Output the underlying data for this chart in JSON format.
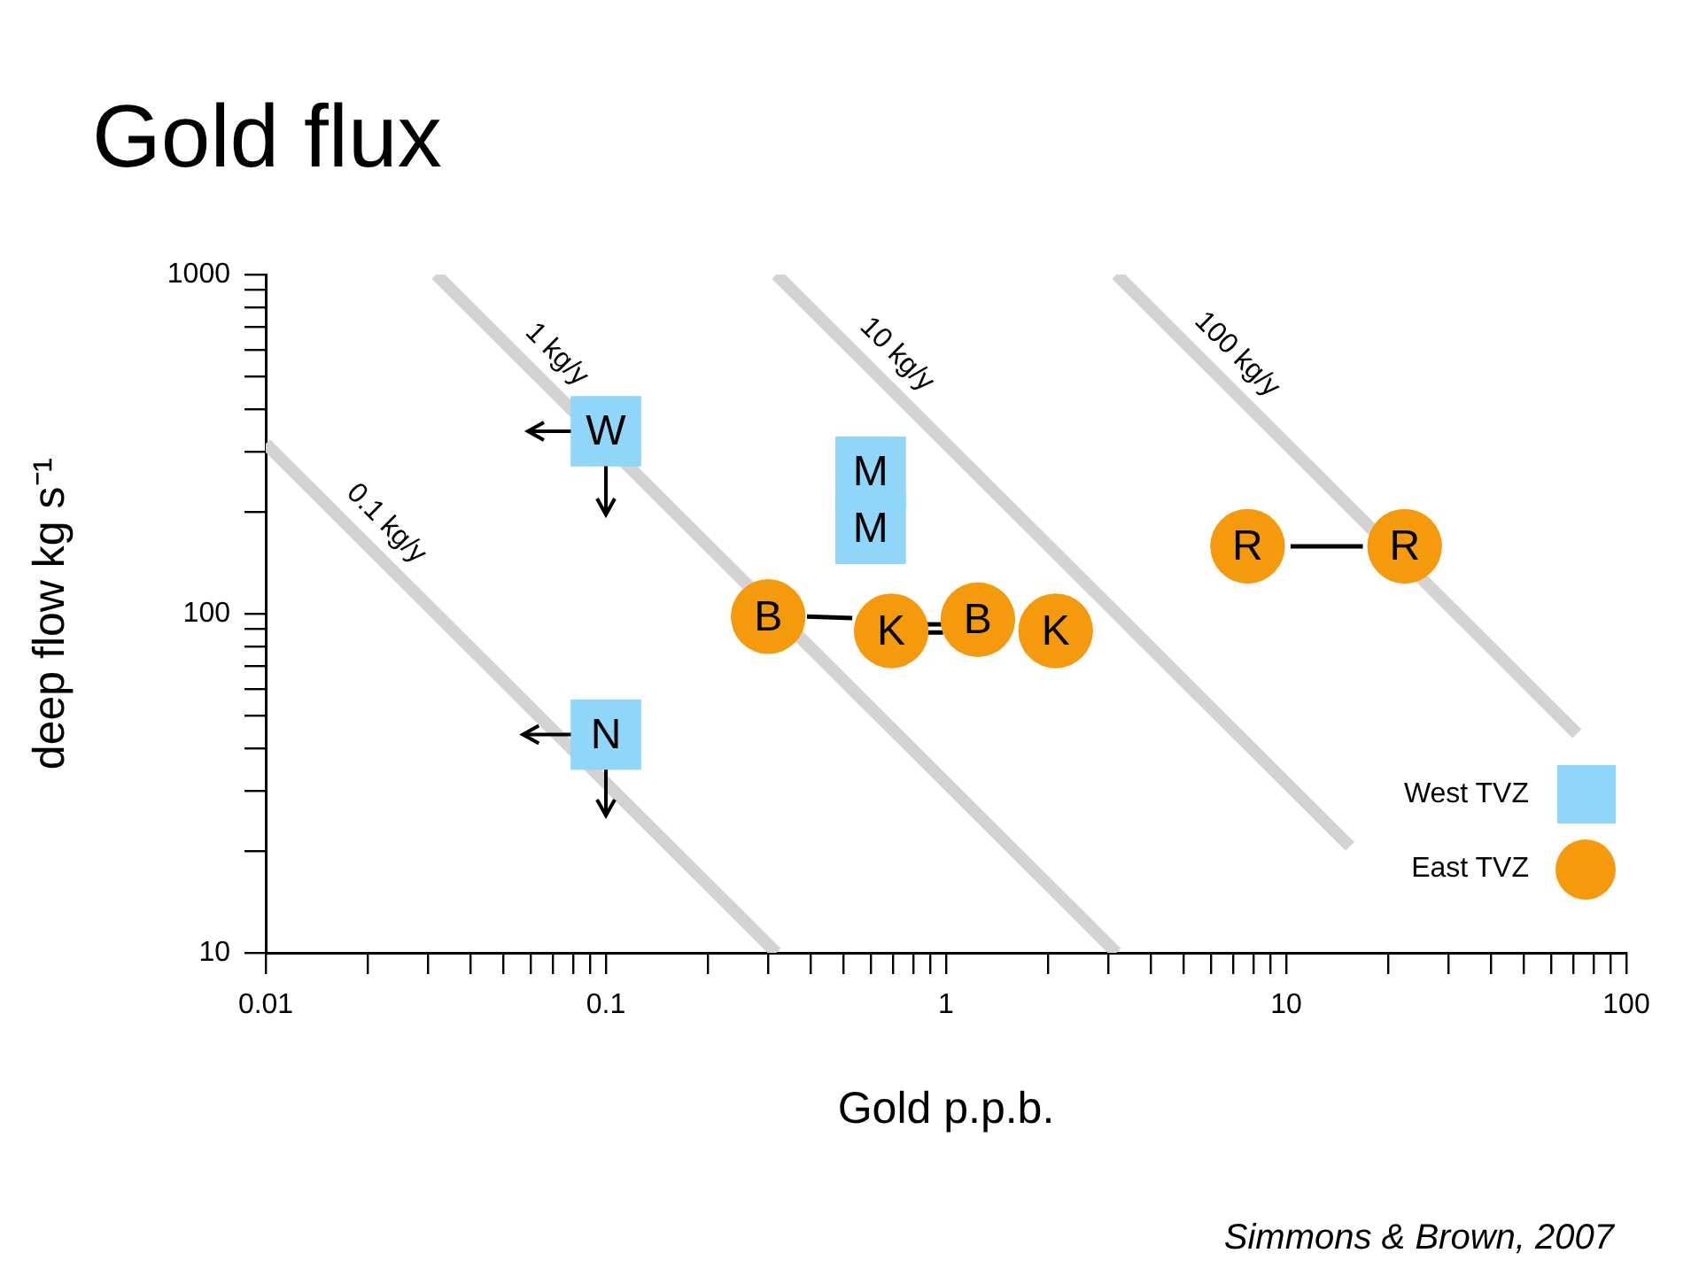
{
  "chart_data": {
    "type": "scatter",
    "title": "Gold flux",
    "xlabel": "Gold p.p.b.",
    "ylabel": "deep flow kg s⁻¹",
    "log": "xy",
    "grid": false,
    "legend": "bottom right",
    "line_style": "solid",
    "xlim": [
      0.01,
      100
    ],
    "ylim": [
      10,
      1000
    ],
    "xticks": [
      0.01,
      {
        "value": 0.02,
        "label": null
      },
      {
        "value": 0.03,
        "label": null
      },
      {
        "value": 0.04,
        "label": null
      },
      {
        "value": 0.05,
        "label": null
      },
      {
        "value": 0.06,
        "label": null
      },
      {
        "value": 0.07,
        "label": null
      },
      {
        "value": 0.08,
        "label": null
      },
      {
        "value": 0.09,
        "label": null
      },
      0.1,
      {
        "value": 0.2,
        "label": null
      },
      {
        "value": 0.3,
        "label": null
      },
      {
        "value": 0.4,
        "label": null
      },
      {
        "value": 0.5,
        "label": null
      },
      {
        "value": 0.6,
        "label": null
      },
      {
        "value": 0.7,
        "label": null
      },
      {
        "value": 0.8,
        "label": null
      },
      {
        "value": 0.9,
        "label": null
      },
      1,
      {
        "value": 2,
        "label": null
      },
      {
        "value": 3,
        "label": null
      },
      {
        "value": 4,
        "label": null
      },
      {
        "value": 5,
        "label": null
      },
      {
        "value": 6,
        "label": null
      },
      {
        "value": 7,
        "label": null
      },
      {
        "value": 8,
        "label": null
      },
      {
        "value": 9,
        "label": null
      },
      10,
      {
        "value": 20,
        "label": null
      },
      {
        "value": 30,
        "label": null
      },
      {
        "value": 40,
        "label": null
      },
      {
        "value": 50,
        "label": null
      },
      {
        "value": 60,
        "label": null
      },
      {
        "value": 70,
        "label": null
      },
      {
        "value": 80,
        "label": null
      },
      {
        "value": 90,
        "label": null
      },
      100
    ],
    "yticks": [
      10,
      {
        "value": 20,
        "label": null
      },
      {
        "value": 30,
        "label": null
      },
      {
        "value": 40,
        "label": null
      },
      {
        "value": 50,
        "label": null
      },
      {
        "value": 60,
        "label": null
      },
      {
        "value": 70,
        "label": null
      },
      {
        "value": 80,
        "label": null
      },
      {
        "value": 90,
        "label": null
      },
      100,
      {
        "value": 200,
        "label": null
      },
      {
        "value": 300,
        "label": null
      },
      {
        "value": 400,
        "label": null
      },
      {
        "value": 500,
        "label": null
      },
      {
        "value": 600,
        "label": null
      },
      {
        "value": 700,
        "label": null
      },
      {
        "value": 800,
        "label": null
      },
      {
        "value": 900,
        "label": null
      },
      1000
    ],
    "series": [
      {
        "type": "line",
        "name": "0.1 kg/y",
        "color": "#d3d3d3",
        "marker": "none",
        "x": [
          0.01,
          0.317
        ],
        "values": [
          317,
          10
        ]
      },
      {
        "type": "line",
        "name": "1 kg/y",
        "color": "#d3d3d3",
        "marker": "none",
        "x": [
          0.0317,
          3.17
        ],
        "values": [
          1000,
          10
        ]
      },
      {
        "type": "line",
        "name": "10 kg/y",
        "color": "#d3d3d3",
        "marker": "none",
        "x": [
          0.317,
          15.4
        ],
        "values": [
          1000,
          20.6
        ]
      },
      {
        "type": "line",
        "name": "100 kg/y",
        "color": "#d3d3d3",
        "marker": "none",
        "x": [
          3.17,
          71.6
        ],
        "values": [
          1000,
          44.3
        ]
      },
      {
        "type": "line",
        "color": "#000000",
        "marker": "none",
        "x": [
          0.39,
          0.53
        ],
        "values": [
          98,
          97
        ]
      },
      {
        "type": "line",
        "color": "#000000",
        "marker": "none",
        "x": [
          0.88,
          0.98
        ],
        "values": [
          93,
          93
        ]
      },
      {
        "type": "line",
        "color": "#000000",
        "marker": "none",
        "x": [
          0.88,
          0.98
        ],
        "values": [
          88,
          88
        ]
      },
      {
        "type": "line",
        "color": "#000000",
        "marker": "none",
        "x": [
          10.3,
          16.8
        ],
        "values": [
          158,
          158
        ]
      },
      {
        "type": "scatter",
        "name": "West TVZ",
        "color": "#8fd6f9",
        "marker": "square",
        "x": [
          0.1,
          0.6,
          0.6,
          0.1
        ],
        "values": [
          345,
          262,
          178,
          44
        ],
        "value_labels": [
          "W",
          "M",
          "M",
          "N"
        ],
        "errors": [
          [
            196,
            345
          ],
          null,
          null,
          [
            25.4,
            44
          ]
        ],
        "xerrors": [
          [
            0.059,
            0.1
          ],
          null,
          null,
          [
            0.057,
            0.1
          ]
        ]
      },
      {
        "type": "scatter",
        "name": "East TVZ",
        "color": "#f59a0c",
        "marker": "circle",
        "x": [
          0.3,
          0.69,
          1.24,
          2.1,
          7.7,
          22.3
        ],
        "values": [
          98,
          89,
          96,
          89,
          158,
          158
        ],
        "value_labels": [
          "B",
          "K",
          "B",
          "K",
          "R",
          "R"
        ]
      }
    ],
    "annotations": [
      "Simmons & Brown, 2007"
    ]
  }
}
